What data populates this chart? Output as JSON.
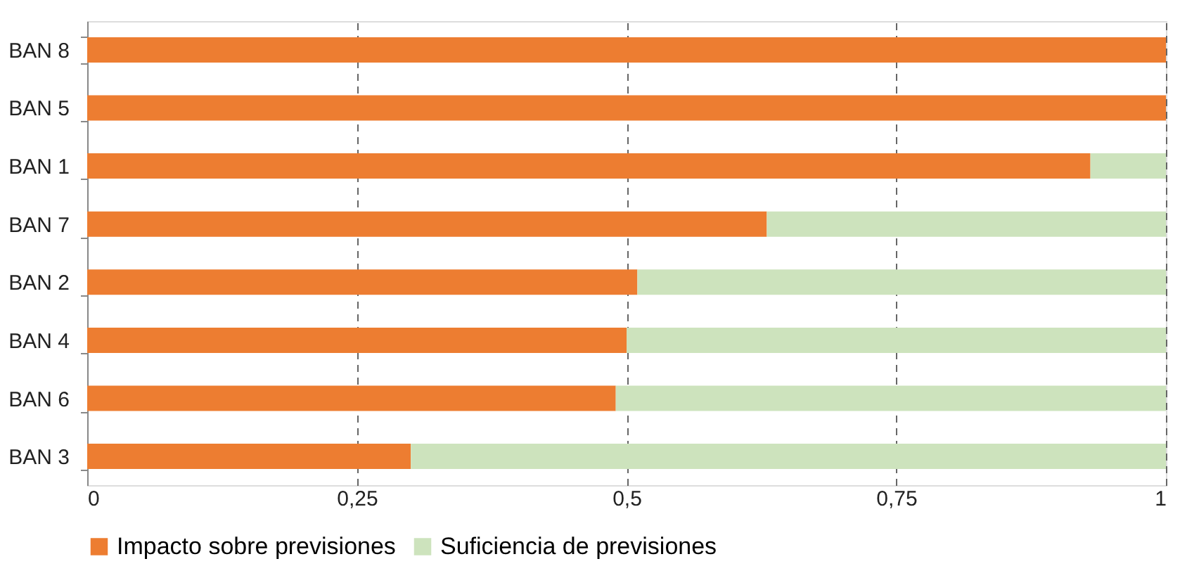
{
  "chart_data": {
    "type": "bar",
    "orientation": "horizontal",
    "stacked": true,
    "categories": [
      "BAN 8",
      "BAN 5",
      "BAN 1",
      "BAN 7",
      "BAN 2",
      "BAN 4",
      "BAN 6",
      "BAN 3"
    ],
    "series": [
      {
        "name": "Impacto sobre previsiones",
        "color": "#ed7d31",
        "values": [
          1,
          1,
          0.93,
          0.63,
          0.51,
          0.5,
          0.49,
          0.3
        ]
      },
      {
        "name": "Suficiencia de previsiones",
        "color": "#cde3bd",
        "values": [
          0,
          0,
          0.07,
          0.37,
          0.49,
          0.5,
          0.51,
          0.7
        ]
      }
    ],
    "xlim": [
      0,
      1
    ],
    "xticks": [
      0,
      {
        "value": 0.25,
        "label": "0,25"
      },
      {
        "value": 0.5,
        "label": "0,5"
      },
      {
        "value": 0.75,
        "label": "0,75"
      },
      1
    ],
    "grid": "x",
    "legend": "bottom"
  }
}
